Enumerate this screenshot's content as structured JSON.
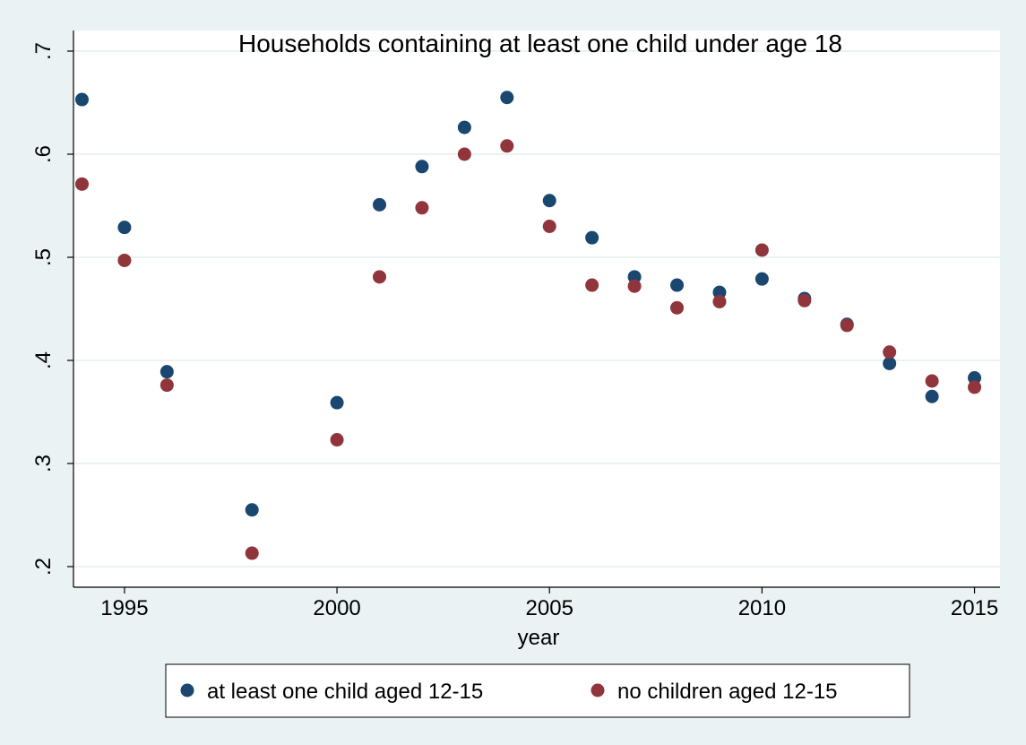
{
  "chart_data": {
    "type": "scatter",
    "title": "Households containing at least one child under age 18",
    "xlabel": "year",
    "ylabel": "",
    "xlim": [
      1993.8,
      2015.6
    ],
    "ylim": [
      0.18,
      0.72
    ],
    "x_ticks": [
      1995,
      2000,
      2005,
      2010,
      2015
    ],
    "y_ticks": [
      0.2,
      0.3,
      0.4,
      0.5,
      0.6,
      0.7
    ],
    "x_tick_labels": [
      "1995",
      "2000",
      "2005",
      "2010",
      "2015"
    ],
    "y_tick_labels": [
      ".2",
      ".3",
      ".4",
      ".5",
      ".6",
      ".7"
    ],
    "grid": "horizontal",
    "legend_position": "bottom",
    "series": [
      {
        "name": "at least one child aged 12-15",
        "color": "#1a476f",
        "points": [
          [
            1994,
            0.653
          ],
          [
            1995,
            0.529
          ],
          [
            1996,
            0.389
          ],
          [
            1998,
            0.255
          ],
          [
            2000,
            0.359
          ],
          [
            2001,
            0.551
          ],
          [
            2002,
            0.588
          ],
          [
            2003,
            0.626
          ],
          [
            2004,
            0.655
          ],
          [
            2005,
            0.555
          ],
          [
            2006,
            0.519
          ],
          [
            2007,
            0.481
          ],
          [
            2008,
            0.473
          ],
          [
            2009,
            0.466
          ],
          [
            2010,
            0.479
          ],
          [
            2011,
            0.46
          ],
          [
            2012,
            0.435
          ],
          [
            2013,
            0.397
          ],
          [
            2014,
            0.365
          ],
          [
            2015,
            0.383
          ]
        ]
      },
      {
        "name": "no children aged 12-15",
        "color": "#90353b",
        "points": [
          [
            1994,
            0.571
          ],
          [
            1995,
            0.497
          ],
          [
            1996,
            0.376
          ],
          [
            1998,
            0.213
          ],
          [
            2000,
            0.323
          ],
          [
            2001,
            0.481
          ],
          [
            2002,
            0.548
          ],
          [
            2003,
            0.6
          ],
          [
            2004,
            0.608
          ],
          [
            2005,
            0.53
          ],
          [
            2006,
            0.473
          ],
          [
            2007,
            0.472
          ],
          [
            2008,
            0.451
          ],
          [
            2009,
            0.457
          ],
          [
            2010,
            0.507
          ],
          [
            2011,
            0.458
          ],
          [
            2012,
            0.434
          ],
          [
            2013,
            0.408
          ],
          [
            2014,
            0.38
          ],
          [
            2015,
            0.374
          ]
        ]
      }
    ]
  }
}
